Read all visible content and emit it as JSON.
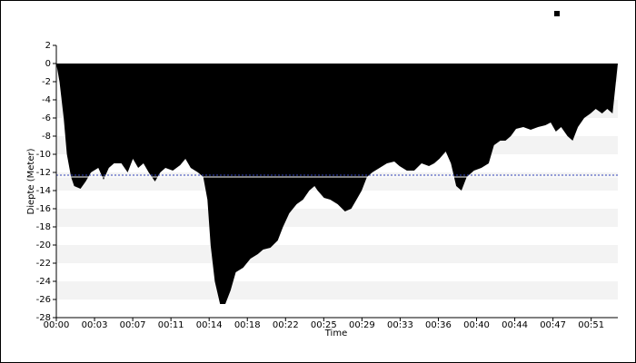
{
  "chart_data": {
    "type": "area",
    "x_label": "Time",
    "y_label": "Diepte (Meter)",
    "color": "#000000",
    "x": [
      0,
      0.3,
      0.7,
      1.0,
      1.4,
      1.7,
      2.3,
      2.8,
      3.3,
      4.0,
      4.5,
      5.0,
      5.5,
      6.2,
      6.8,
      7.3,
      7.8,
      8.3,
      8.8,
      9.4,
      9.9,
      10.4,
      11.1,
      11.8,
      12.3,
      12.8,
      13.5,
      14.0,
      14.4,
      14.7,
      15.1,
      15.6,
      16.1,
      16.6,
      17.1,
      17.8,
      18.5,
      19.2,
      19.7,
      20.4,
      21.1,
      21.6,
      22.2,
      22.9,
      23.5,
      24.1,
      24.6,
      24.9,
      25.5,
      26.1,
      26.8,
      27.5,
      28.1,
      28.6,
      29.1,
      29.6,
      30.1,
      30.8,
      31.5,
      32.2,
      32.7,
      33.4,
      34.1,
      34.8,
      35.5,
      36.0,
      36.5,
      37.1,
      37.6,
      38.1,
      38.6,
      39.1,
      39.8,
      40.5,
      41.2,
      41.7,
      42.3,
      42.8,
      43.3,
      43.8,
      44.5,
      45.2,
      45.9,
      46.6,
      47.1,
      47.6,
      48.1,
      48.7,
      49.2,
      49.7,
      50.3,
      50.9,
      51.4,
      52.0,
      52.5,
      53.0,
      53.5
    ],
    "values": [
      0,
      -2,
      -6,
      -10,
      -12.5,
      -13.5,
      -13.8,
      -13,
      -12,
      -11.5,
      -12.8,
      -11.5,
      -11,
      -11,
      -12,
      -10.5,
      -11.5,
      -11,
      -12,
      -13,
      -12,
      -11.5,
      -11.8,
      -11.2,
      -10.5,
      -11.5,
      -12,
      -12.5,
      -15,
      -20,
      -24,
      -26.5,
      -26.5,
      -25,
      -23,
      -22.5,
      -21.5,
      -21,
      -20.5,
      -20.3,
      -19.5,
      -18,
      -16.5,
      -15.5,
      -15,
      -14,
      -13.5,
      -14,
      -14.8,
      -15,
      -15.5,
      -16.3,
      -16,
      -15,
      -14,
      -12.5,
      -12,
      -11.5,
      -11,
      -10.8,
      -11.3,
      -11.8,
      -11.8,
      -11,
      -11.3,
      -11,
      -10.5,
      -9.7,
      -11,
      -13.5,
      -14,
      -12.5,
      -11.8,
      -11.5,
      -11,
      -9,
      -8.5,
      -8.5,
      -8,
      -7.2,
      -7,
      -7.3,
      -7,
      -6.8,
      -6.5,
      -7.5,
      -7,
      -8,
      -8.5,
      -7,
      -6,
      -5.5,
      -5,
      -5.5,
      -5,
      -5.5,
      0
    ],
    "reference_lines": [
      {
        "value": -12.5,
        "color": "#ffffff",
        "dash": false
      },
      {
        "value": -12.3,
        "color": "#3344bb",
        "dash": true
      }
    ],
    "xlim": [
      0,
      53.5
    ],
    "xticks": [
      {
        "value": 0,
        "label": "00:00"
      },
      {
        "value": 3.64,
        "label": "00:03"
      },
      {
        "value": 7.28,
        "label": "00:07"
      },
      {
        "value": 10.92,
        "label": "00:11"
      },
      {
        "value": 14.56,
        "label": "00:14"
      },
      {
        "value": 18.2,
        "label": "00:18"
      },
      {
        "value": 21.84,
        "label": "00:22"
      },
      {
        "value": 25.48,
        "label": "00:25"
      },
      {
        "value": 29.12,
        "label": "00:29"
      },
      {
        "value": 32.76,
        "label": "00:33"
      },
      {
        "value": 36.4,
        "label": "00:36"
      },
      {
        "value": 40.04,
        "label": "00:40"
      },
      {
        "value": 43.68,
        "label": "00:44"
      },
      {
        "value": 47.32,
        "label": "00:47"
      },
      {
        "value": 50.96,
        "label": "00:51"
      }
    ],
    "ylim": [
      -28,
      2
    ],
    "yticks": [
      2,
      0,
      -2,
      -4,
      -6,
      -8,
      -10,
      -12,
      -14,
      -16,
      -18,
      -20,
      -22,
      -24,
      -26,
      -28
    ],
    "band_color": "#f3f3f3"
  }
}
